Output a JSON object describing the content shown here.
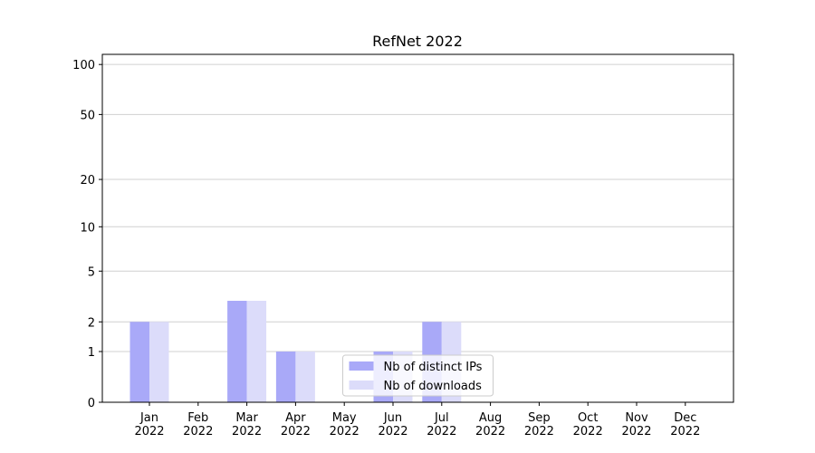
{
  "chart_data": {
    "type": "bar",
    "title": "RefNet 2022",
    "categories": [
      "Jan\n2022",
      "Feb\n2022",
      "Mar\n2022",
      "Apr\n2022",
      "May\n2022",
      "Jun\n2022",
      "Jul\n2022",
      "Aug\n2022",
      "Sep\n2022",
      "Oct\n2022",
      "Nov\n2022",
      "Dec\n2022"
    ],
    "series": [
      {
        "name": "Nb of distinct IPs",
        "color": "#a9a9f8",
        "values": [
          2,
          0,
          3,
          1,
          0,
          1,
          2,
          0,
          0,
          0,
          0,
          0
        ]
      },
      {
        "name": "Nb of downloads",
        "color": "#dcdcfa",
        "values": [
          2,
          0,
          3,
          1,
          0,
          1,
          2,
          0,
          0,
          0,
          0,
          0
        ]
      }
    ],
    "yscale": "log1p",
    "ylim": [
      0,
      115
    ],
    "yticks": [
      0,
      1,
      2,
      5,
      10,
      20,
      50,
      100
    ],
    "grid": true,
    "legend": "lower center"
  }
}
